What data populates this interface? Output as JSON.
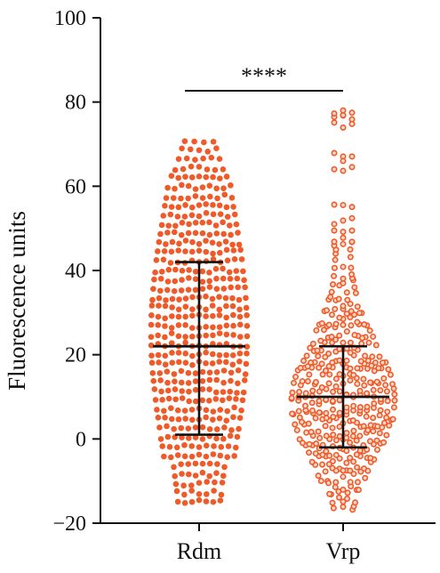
{
  "chart_data": {
    "type": "scatter",
    "subtype": "beeswarm-dot-plot-with-mean-and-sd",
    "title": "",
    "xlabel": "",
    "ylabel": "Fluorescence units",
    "ylim": [
      -20,
      100
    ],
    "yticks": [
      -20,
      0,
      20,
      40,
      60,
      80,
      100
    ],
    "categories": [
      "Rdm",
      "Vrp"
    ],
    "series": [
      {
        "category": "Rdm",
        "color": "#f05a28",
        "marker": "filled-circle",
        "mean": 22,
        "sd_low": 1,
        "sd_high": 42,
        "min": -15,
        "max": 71,
        "n_points_estimate": 900
      },
      {
        "category": "Vrp",
        "color": "#f05a28",
        "marker": "open-circle",
        "mean": 10,
        "sd_low": -2,
        "sd_high": 22,
        "min": -17,
        "max": 78,
        "n_points_estimate": 1200
      }
    ],
    "significance": {
      "label": "****",
      "between": [
        "Rdm",
        "Vrp"
      ]
    },
    "grid": false,
    "legend": "none"
  }
}
